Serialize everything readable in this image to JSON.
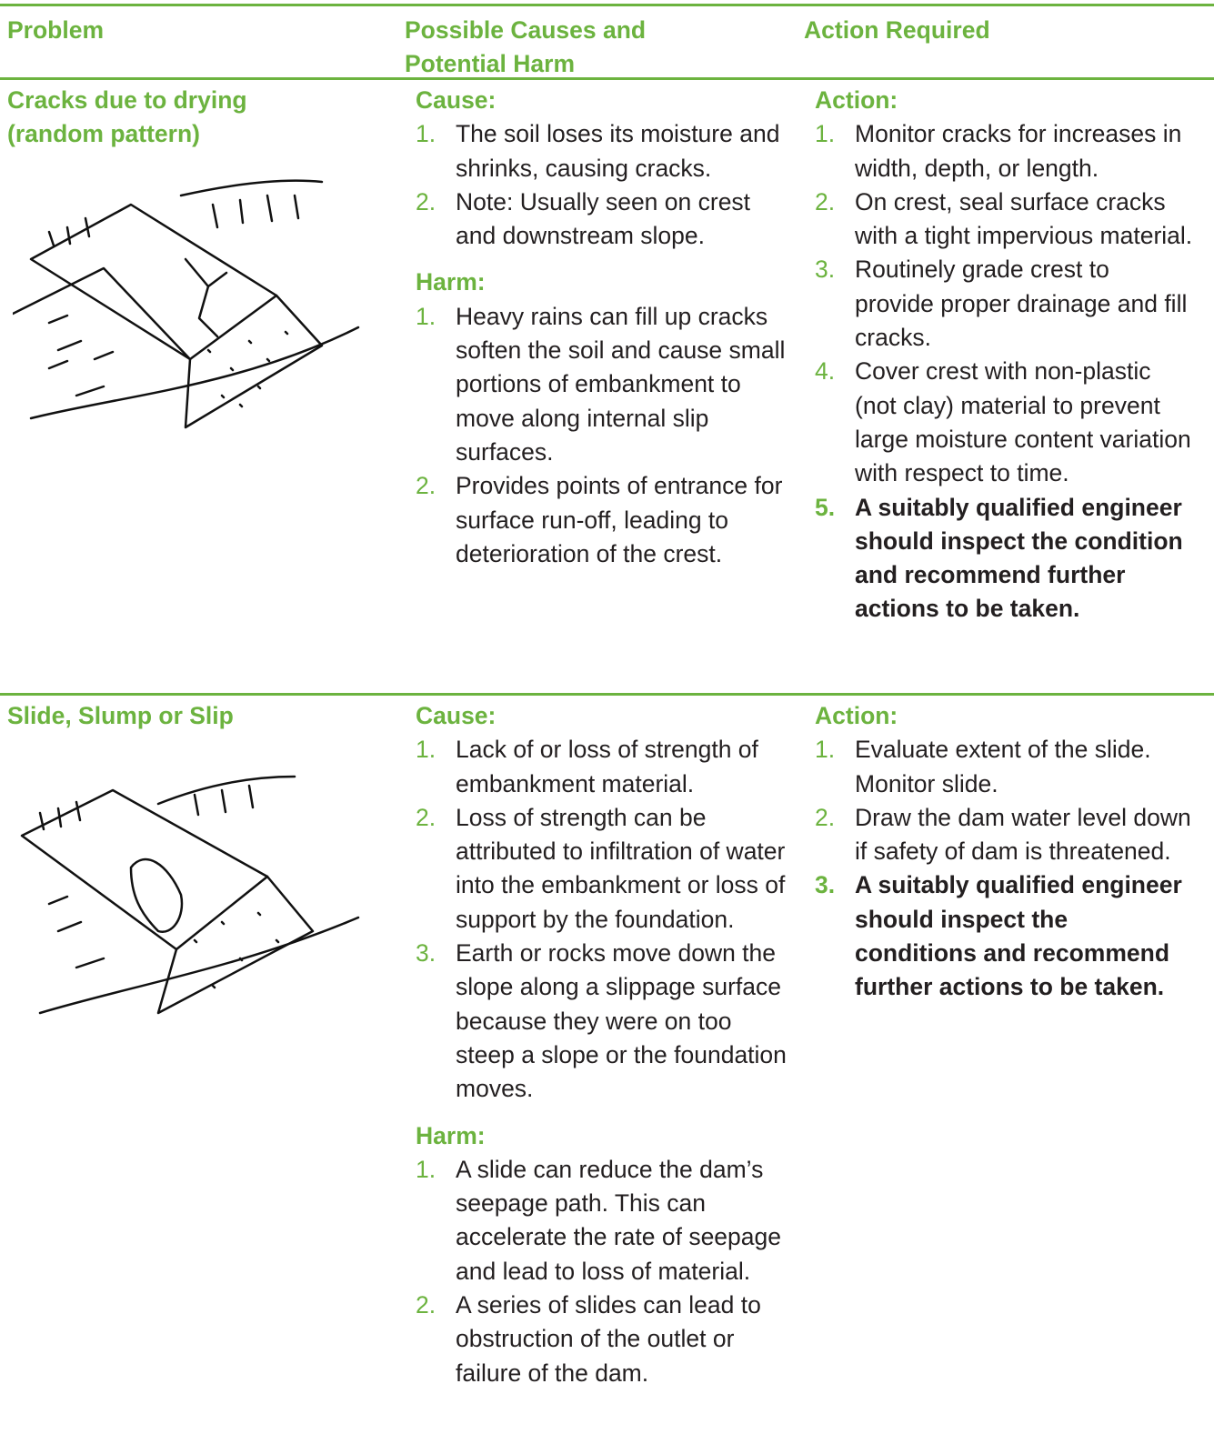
{
  "header": {
    "problem": "Problem",
    "causes": "Possible Causes and Potential Harm",
    "action": "Action Required"
  },
  "rows": [
    {
      "problem": "Cracks due to drying (random pattern)",
      "cause_heading": "Cause:",
      "causes": [
        {
          "number": "1.",
          "text": "The soil loses its moisture and shrinks, causing cracks."
        },
        {
          "number": "2.",
          "text": "Note: Usually seen on crest and downstream slope."
        }
      ],
      "harm_heading": "Harm:",
      "harms": [
        {
          "number": "1.",
          "text": "Heavy rains can fill up cracks soften the soil and cause small portions of embankment to move along internal slip surfaces."
        },
        {
          "number": "2.",
          "text": "Provides points of entrance for surface run-off, leading to deterioration of the crest."
        }
      ],
      "action_heading": "Action:",
      "actions": [
        {
          "number": "1.",
          "text": "Monitor cracks for increases in width, depth, or length."
        },
        {
          "number": "2.",
          "text": "On crest, seal surface cracks with a tight impervious material."
        },
        {
          "number": "3.",
          "text": "Routinely grade crest to provide proper drainage and fill cracks."
        },
        {
          "number": "4.",
          "text": "Cover crest with non-plastic (not clay) material to prevent large moisture content variation with respect to time."
        },
        {
          "number": "5.",
          "text": "A suitably qualified engineer should inspect the condition and recommend further actions to be taken.",
          "bold": true
        }
      ]
    },
    {
      "problem": "Slide, Slump or Slip",
      "cause_heading": "Cause:",
      "causes": [
        {
          "number": "1.",
          "text": "Lack of or loss of strength of embankment material."
        },
        {
          "number": "2.",
          "text": "Loss of strength can be attributed to infiltration of water into the embankment or loss of support by the foundation."
        },
        {
          "number": "3.",
          "text": "Earth or rocks move down the slope along a slippage surface because they were on too steep a slope or the foundation moves."
        }
      ],
      "harm_heading": "Harm:",
      "harms": [
        {
          "number": "1.",
          "text": "A slide can reduce the dam’s seepage path. This can accelerate the rate of seepage and lead to loss of material."
        },
        {
          "number": "2.",
          "text": "A series of slides can lead to obstruction of the outlet or failure of the dam."
        }
      ],
      "action_heading": "Action:",
      "actions": [
        {
          "number": "1.",
          "text": "Evaluate extent of the slide. Monitor slide."
        },
        {
          "number": "2.",
          "text": "Draw the dam water level down if safety of dam is threatened."
        },
        {
          "number": "3.",
          "text": "A suitably qualified engineer should inspect the conditions and recommend further actions to be taken.",
          "bold": true
        }
      ]
    }
  ]
}
